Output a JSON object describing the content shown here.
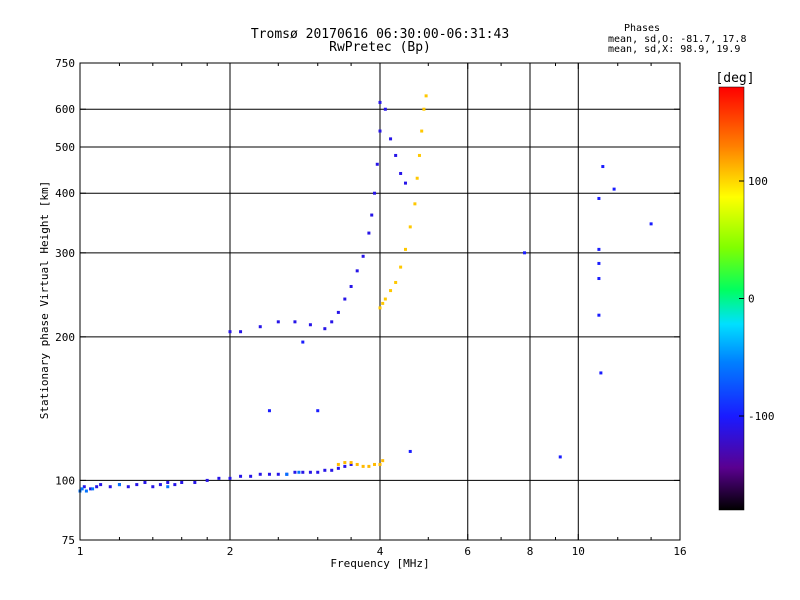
{
  "chart_data": {
    "type": "scatter",
    "title_line1": "Tromsø 20170616 06:30:00-06:31:43",
    "title_line2": "RwPretec (Bp)",
    "stats": {
      "heading": "Phases",
      "line1": "mean, sd,O: -81.7, 17.8",
      "line2": "mean, sd,X:  98.9, 19.9"
    },
    "xlabel": "Frequency [MHz]",
    "ylabel": "Stationary phase Virtual Height [km]",
    "x_scale": "log",
    "y_scale": "log",
    "xlim": [
      1,
      16
    ],
    "ylim": [
      75,
      750
    ],
    "x_ticks": [
      {
        "value": 1,
        "label": "1",
        "grid": false
      },
      {
        "value": 2,
        "label": "2",
        "grid": true
      },
      {
        "value": 4,
        "label": "4",
        "grid": true
      },
      {
        "value": 6,
        "label": "6",
        "grid": true
      },
      {
        "value": 8,
        "label": "8",
        "grid": true
      },
      {
        "value": 10,
        "label": "10",
        "grid": true
      },
      {
        "value": 16,
        "label": "16",
        "grid": false
      }
    ],
    "x_minor_ticks": [
      1.2,
      1.4,
      1.6,
      1.8,
      2.5,
      3,
      3.5,
      5,
      7,
      9,
      12,
      14
    ],
    "y_ticks": [
      {
        "value": 75,
        "label": "75",
        "grid": false
      },
      {
        "value": 100,
        "label": "100",
        "grid": true
      },
      {
        "value": 200,
        "label": "200",
        "grid": true
      },
      {
        "value": 300,
        "label": "300",
        "grid": true
      },
      {
        "value": 400,
        "label": "400",
        "grid": true
      },
      {
        "value": 500,
        "label": "500",
        "grid": true
      },
      {
        "value": 600,
        "label": "600",
        "grid": true
      },
      {
        "value": 750,
        "label": "750",
        "grid": false
      }
    ],
    "colorbar": {
      "label": "[deg]",
      "range": [
        -180,
        180
      ],
      "ticks": [
        {
          "value": 100,
          "label": "100"
        },
        {
          "value": 0,
          "label": "0"
        },
        {
          "value": -100,
          "label": "-100"
        }
      ]
    },
    "series": [
      {
        "name": "O-mode E-region trace",
        "phase_deg": -110,
        "points": [
          [
            1.02,
            97
          ],
          [
            1.05,
            96
          ],
          [
            1.08,
            97
          ],
          [
            1.1,
            98
          ],
          [
            1.15,
            97
          ],
          [
            1.2,
            98
          ],
          [
            1.25,
            97
          ],
          [
            1.3,
            98
          ],
          [
            1.35,
            99
          ],
          [
            1.4,
            97
          ],
          [
            1.45,
            98
          ],
          [
            1.5,
            99
          ],
          [
            1.55,
            98
          ],
          [
            1.6,
            99
          ],
          [
            1.7,
            99
          ],
          [
            1.8,
            100
          ],
          [
            1.9,
            101
          ],
          [
            2.0,
            101
          ],
          [
            2.1,
            102
          ],
          [
            2.2,
            102
          ],
          [
            2.3,
            103
          ],
          [
            2.4,
            103
          ],
          [
            2.5,
            103
          ],
          [
            2.6,
            103
          ],
          [
            2.7,
            104
          ],
          [
            2.8,
            104
          ],
          [
            2.9,
            104
          ],
          [
            3.0,
            104
          ],
          [
            3.1,
            105
          ],
          [
            3.2,
            105
          ],
          [
            3.3,
            106
          ],
          [
            3.4,
            107
          ],
          [
            3.5,
            108
          ]
        ]
      },
      {
        "name": "O-mode E-region trace (low end)",
        "phase_deg": -60,
        "points": [
          [
            1.0,
            95
          ],
          [
            1.01,
            96
          ],
          [
            1.03,
            95
          ],
          [
            1.06,
            96
          ],
          [
            1.2,
            98
          ],
          [
            1.5,
            97
          ],
          [
            2.6,
            103
          ],
          [
            2.75,
            104
          ]
        ]
      },
      {
        "name": "X-mode E-region trace",
        "phase_deg": 110,
        "points": [
          [
            3.3,
            108
          ],
          [
            3.4,
            109
          ],
          [
            3.5,
            109
          ],
          [
            3.6,
            108
          ],
          [
            3.7,
            107
          ],
          [
            3.8,
            107
          ],
          [
            3.9,
            108
          ],
          [
            4.0,
            108
          ],
          [
            4.05,
            110
          ]
        ]
      },
      {
        "name": "O-mode F-region trace",
        "phase_deg": -110,
        "points": [
          [
            2.0,
            205
          ],
          [
            2.1,
            205
          ],
          [
            2.3,
            210
          ],
          [
            2.5,
            215
          ],
          [
            2.7,
            215
          ],
          [
            2.9,
            212
          ],
          [
            3.1,
            208
          ],
          [
            3.2,
            215
          ],
          [
            3.3,
            225
          ],
          [
            3.4,
            240
          ],
          [
            3.5,
            255
          ],
          [
            3.6,
            275
          ],
          [
            3.7,
            295
          ],
          [
            3.8,
            330
          ],
          [
            3.85,
            360
          ],
          [
            3.9,
            400
          ],
          [
            3.95,
            460
          ],
          [
            4.0,
            540
          ],
          [
            4.0,
            620
          ],
          [
            4.1,
            600
          ],
          [
            4.2,
            520
          ],
          [
            4.3,
            480
          ],
          [
            4.4,
            440
          ],
          [
            4.5,
            420
          ]
        ]
      },
      {
        "name": "X-mode F-region trace",
        "phase_deg": 105,
        "points": [
          [
            4.0,
            230
          ],
          [
            4.05,
            235
          ],
          [
            4.1,
            240
          ],
          [
            4.2,
            250
          ],
          [
            4.3,
            260
          ],
          [
            4.4,
            280
          ],
          [
            4.5,
            305
          ],
          [
            4.6,
            340
          ],
          [
            4.7,
            380
          ],
          [
            4.75,
            430
          ],
          [
            4.8,
            480
          ],
          [
            4.85,
            540
          ],
          [
            4.9,
            600
          ],
          [
            4.95,
            640
          ]
        ]
      },
      {
        "name": "Scattered echoes",
        "phase_deg": -100,
        "points": [
          [
            9.2,
            112
          ],
          [
            11.0,
            390
          ],
          [
            11.0,
            305
          ],
          [
            11.0,
            285
          ],
          [
            11.0,
            265
          ],
          [
            11.0,
            222
          ],
          [
            11.1,
            168
          ],
          [
            11.2,
            455
          ],
          [
            11.8,
            408
          ],
          [
            14.0,
            345
          ],
          [
            7.8,
            300
          ],
          [
            4.6,
            115
          ],
          [
            3.0,
            140
          ],
          [
            2.4,
            140
          ],
          [
            2.8,
            195
          ]
        ]
      }
    ]
  }
}
